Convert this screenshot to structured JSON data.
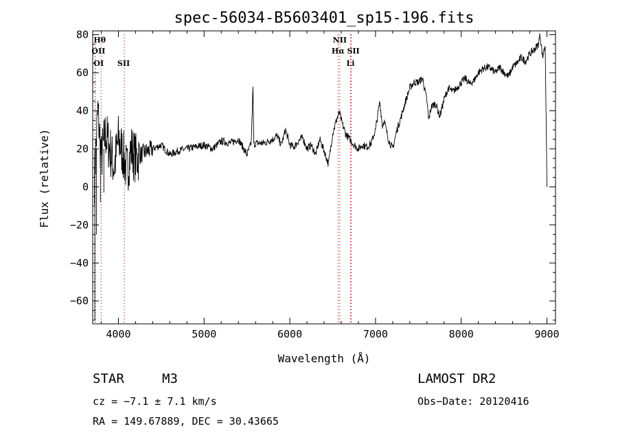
{
  "chart_data": {
    "type": "line",
    "title": "spec-56034-B5603401_sp15-196.fits",
    "xlabel": "Wavelength (Å)",
    "ylabel": "Flux (relative)",
    "xlim": [
      3700,
      9100
    ],
    "ylim": [
      -72,
      82
    ],
    "x_ticks": [
      4000,
      5000,
      6000,
      7000,
      8000,
      9000
    ],
    "y_ticks": [
      -60,
      -40,
      -20,
      0,
      20,
      40,
      60,
      80
    ],
    "grid": false,
    "series": [
      {
        "values_description": "approximate continuum trend of spectrum flux",
        "x": [
          3720,
          3760,
          3800,
          3850,
          3900,
          3950,
          4000,
          4050,
          4100,
          4150,
          4200,
          4300,
          4400,
          4500,
          4600,
          4700,
          4800,
          4900,
          5000,
          5100,
          5200,
          5300,
          5400,
          5500,
          5550,
          5570,
          5580,
          5600,
          5700,
          5800,
          5850,
          5900,
          5950,
          6000,
          6050,
          6100,
          6150,
          6200,
          6250,
          6300,
          6350,
          6400,
          6450,
          6500,
          6550,
          6580,
          6600,
          6650,
          6700,
          6750,
          6800,
          6850,
          6900,
          6950,
          7000,
          7050,
          7080,
          7100,
          7150,
          7200,
          7250,
          7300,
          7350,
          7400,
          7450,
          7500,
          7550,
          7600,
          7620,
          7650,
          7700,
          7750,
          7800,
          7850,
          7900,
          7950,
          8000,
          8050,
          8100,
          8150,
          8200,
          8250,
          8300,
          8350,
          8400,
          8450,
          8500,
          8550,
          8600,
          8650,
          8700,
          8750,
          8800,
          8850,
          8900,
          8920,
          8950,
          8980,
          9000
        ],
        "y": [
          5,
          40,
          15,
          28,
          20,
          10,
          25,
          18,
          8,
          20,
          15,
          18,
          20,
          22,
          17,
          19,
          20,
          21,
          22,
          20,
          24,
          23,
          25,
          17,
          23,
          52,
          22,
          23,
          23,
          25,
          27,
          22,
          30,
          22,
          21,
          24,
          26,
          20,
          22,
          17,
          25,
          19,
          12,
          28,
          36,
          39,
          35,
          28,
          25,
          22,
          20,
          22,
          21,
          23,
          30,
          45,
          32,
          35,
          25,
          20,
          30,
          37,
          45,
          52,
          55,
          55,
          57,
          45,
          35,
          42,
          44,
          37,
          46,
          52,
          50,
          52,
          55,
          57,
          54,
          56,
          60,
          62,
          63,
          62,
          60,
          63,
          60,
          58,
          63,
          65,
          68,
          66,
          70,
          72,
          75,
          80,
          68,
          75,
          0
        ]
      }
    ],
    "line_markers": [
      {
        "label": "Hθ",
        "x": 3798
      },
      {
        "label": "OII",
        "x": 3727
      },
      {
        "label": "OI",
        "x": 3730
      },
      {
        "label": "SII",
        "x": 4069
      },
      {
        "label": "NII",
        "x": 6583
      },
      {
        "label": "Hα",
        "x": 6563
      },
      {
        "label": "SII",
        "x": 6717
      },
      {
        "label": "Li",
        "x": 6708
      }
    ]
  },
  "info": {
    "object_type": "STAR",
    "subclass": "M3",
    "survey": "LAMOST DR2",
    "cz": "cz = −7.1 ± 7.1 km/s",
    "obs_date": "Obs−Date: 20120416",
    "coords": "RA = 149.67889, DEC =  30.43665"
  }
}
